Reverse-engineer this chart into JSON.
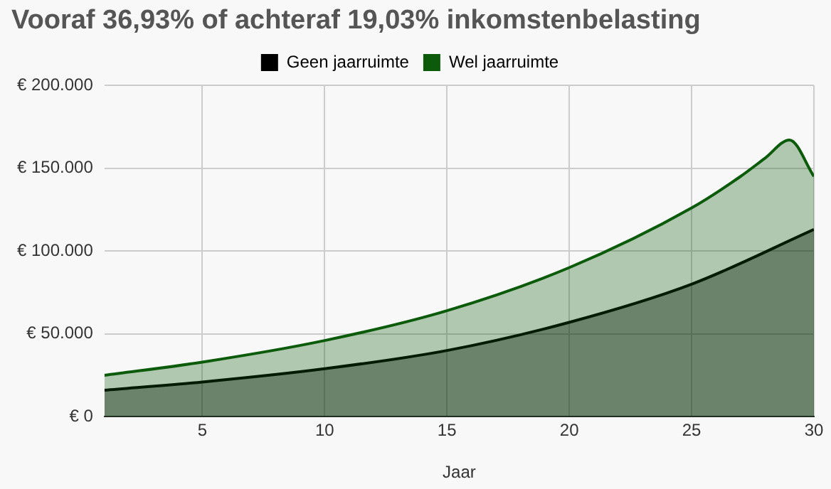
{
  "chart_data": {
    "type": "area",
    "title": "Vooraf 36,93% of achteraf 19,03% inkomstenbelasting",
    "xlabel": "Jaar",
    "series": [
      {
        "name": "Geen jaarruimte",
        "color": "#000000",
        "x": [
          1,
          5,
          10,
          15,
          20,
          25,
          30
        ],
        "values": [
          16000,
          21000,
          29000,
          40000,
          57000,
          80000,
          113000
        ]
      },
      {
        "name": "Wel jaarruimte",
        "color": "#0b5b0b",
        "x": [
          1,
          5,
          10,
          15,
          20,
          25,
          27,
          28,
          29,
          30
        ],
        "values": [
          25000,
          33000,
          46000,
          64000,
          90000,
          126000,
          145000,
          156000,
          167000,
          145000
        ]
      }
    ],
    "xlim": [
      1,
      30
    ],
    "xticks": [
      5,
      10,
      15,
      20,
      25,
      30
    ],
    "ylim": [
      0,
      200000
    ],
    "yticks": [
      {
        "value": 0,
        "label": "€ 0"
      },
      {
        "value": 50000,
        "label": "€ 50.000"
      },
      {
        "value": 100000,
        "label": "€ 100.000"
      },
      {
        "value": 150000,
        "label": "€ 150.000"
      },
      {
        "value": 200000,
        "label": "€ 200.000"
      }
    ],
    "grid": true,
    "legend": "top"
  }
}
